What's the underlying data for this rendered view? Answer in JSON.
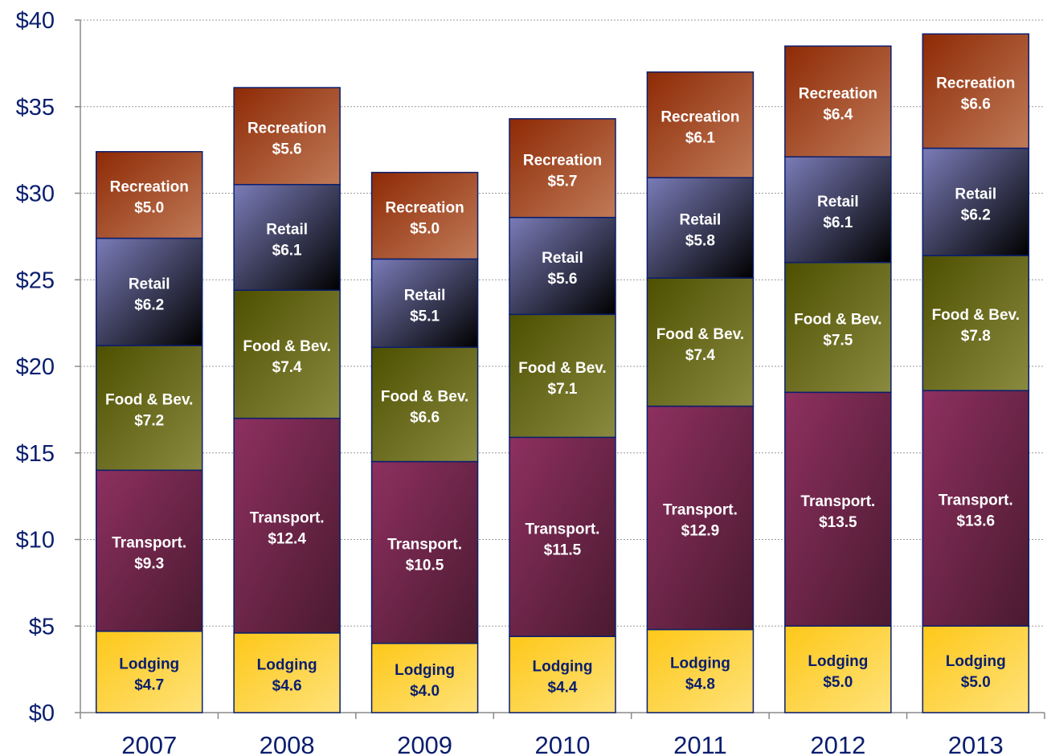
{
  "chart_data": {
    "type": "bar",
    "stacked": true,
    "categories": [
      "2007",
      "2008",
      "2009",
      "2010",
      "2011",
      "2012",
      "2013"
    ],
    "series": [
      {
        "name": "Lodging",
        "values": [
          4.7,
          4.6,
          4.0,
          4.4,
          4.8,
          5.0,
          5.0
        ],
        "labels": [
          "$4.7",
          "$4.6",
          "$4.0",
          "$4.4",
          "$4.8",
          "$5.0",
          "$5.0"
        ]
      },
      {
        "name": "Transport.",
        "values": [
          9.3,
          12.4,
          10.5,
          11.5,
          12.9,
          13.5,
          13.6
        ],
        "labels": [
          "$9.3",
          "$12.4",
          "$10.5",
          "$11.5",
          "$12.9",
          "$13.5",
          "$13.6"
        ]
      },
      {
        "name": "Food & Bev.",
        "values": [
          7.2,
          7.4,
          6.6,
          7.1,
          7.4,
          7.5,
          7.8
        ],
        "labels": [
          "$7.2",
          "$7.4",
          "$6.6",
          "$7.1",
          "$7.4",
          "$7.5",
          "$7.8"
        ]
      },
      {
        "name": "Retail",
        "values": [
          6.2,
          6.1,
          5.1,
          5.6,
          5.8,
          6.1,
          6.2
        ],
        "labels": [
          "$6.2",
          "$6.1",
          "$5.1",
          "$5.6",
          "$5.8",
          "$6.1",
          "$6.2"
        ]
      },
      {
        "name": "Recreation",
        "values": [
          5.0,
          5.6,
          5.0,
          5.7,
          6.1,
          6.4,
          6.6
        ],
        "labels": [
          "$5.0",
          "$5.6",
          "$5.0",
          "$5.7",
          "$6.1",
          "$6.4",
          "$6.6"
        ]
      }
    ],
    "ylim": [
      0,
      40
    ],
    "yticks": [
      0,
      5,
      10,
      15,
      20,
      25,
      30,
      35,
      40
    ],
    "ytick_labels": [
      "$0",
      "$5",
      "$10",
      "$15",
      "$20",
      "$25",
      "$30",
      "$35",
      "$40"
    ],
    "grid": true,
    "legend": "none",
    "colors": {
      "Lodging": [
        "#fdc819",
        "#ffe27a"
      ],
      "Transport.": [
        "#8e3060",
        "#4a1a30"
      ],
      "Food & Bev.": [
        "#4e5000",
        "#8a8a40"
      ],
      "Retail": [
        "#7a7cb8",
        "#000000"
      ],
      "Recreation": [
        "#8e2a05",
        "#c07a58"
      ],
      "label_dark": "#0a1e6e",
      "label_light": "#ffffff",
      "axis_text": "#0a1e6e",
      "bar_outline": "#0a1e6e",
      "grid": "#9a9a9a"
    }
  }
}
